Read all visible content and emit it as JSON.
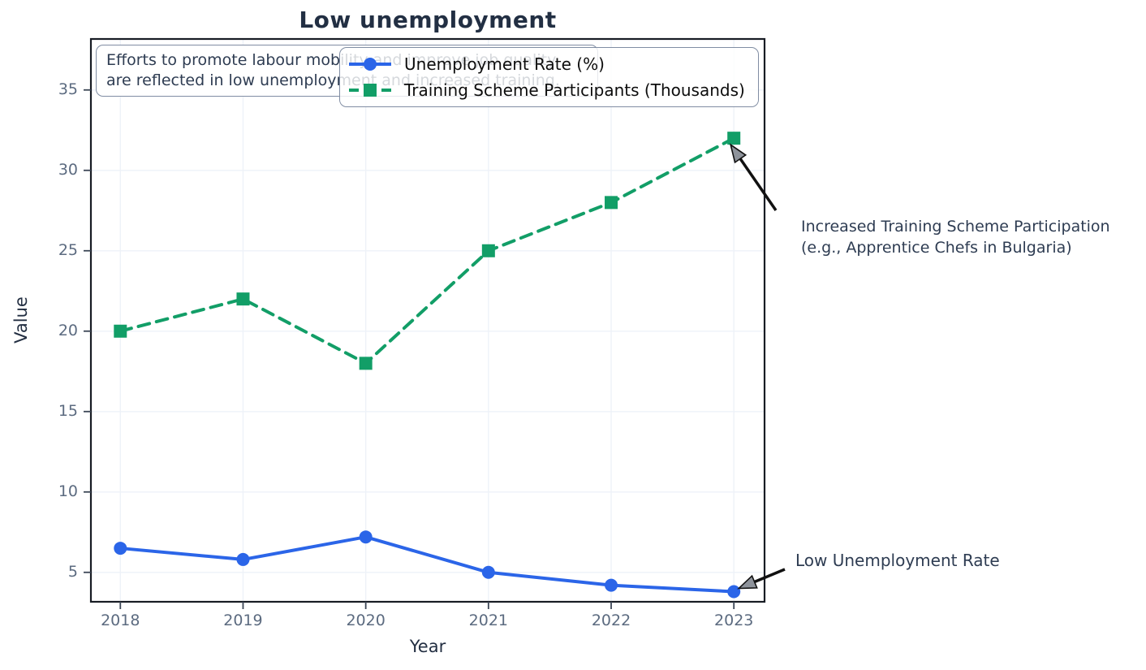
{
  "title": "Low unemployment",
  "chart_data": {
    "type": "line",
    "x": [
      2018,
      2019,
      2020,
      2021,
      2022,
      2023
    ],
    "series": [
      {
        "name": "Unemployment Rate (%)",
        "values": [
          6.5,
          5.8,
          7.2,
          5.0,
          4.2,
          3.8
        ],
        "color": "#2b65e8",
        "line_style": "solid",
        "marker": "circle"
      },
      {
        "name": "Training Scheme Participants (Thousands)",
        "values": [
          20,
          22,
          18,
          25,
          28,
          32
        ],
        "color": "#129e67",
        "line_style": "dashed",
        "marker": "square"
      }
    ],
    "xlabel": "Year",
    "ylabel": "Value",
    "yticks": [
      5,
      10,
      15,
      20,
      25,
      30,
      35
    ],
    "xlim": [
      2017.76,
      2023.25
    ],
    "ylim": [
      3.17,
      38.17
    ],
    "grid": true,
    "legend_position": "upper center"
  },
  "note_box": {
    "line1": "Efforts to promote labour mobility and improve job quality",
    "line2": "are reflected in low unemployment and increased training."
  },
  "annotations": [
    {
      "id": "training",
      "line1": "Increased Training Scheme Participation",
      "line2": "(e.g., Apprentice Chefs in Bulgaria)",
      "series": "Training Scheme Participants (Thousands)",
      "target_x": 2023,
      "target_value": 32
    },
    {
      "id": "unemployment",
      "line1": "Low Unemployment Rate",
      "line2": "",
      "series": "Unemployment Rate (%)",
      "target_x": 2023,
      "target_value": 3.8
    }
  ],
  "colors": {
    "accent_blue": "#2b65e8",
    "accent_green": "#129e67",
    "title_text": "#222f43",
    "tick_text": "#5c6b80",
    "annotation_text": "#2e3c52",
    "spine": "#181c24",
    "grid": "#eef2f8",
    "tick_mark": "#3c4656",
    "arrow_shaft": "#111111",
    "arrow_head_fill": "#8e939b",
    "box_border": "#808da3"
  }
}
